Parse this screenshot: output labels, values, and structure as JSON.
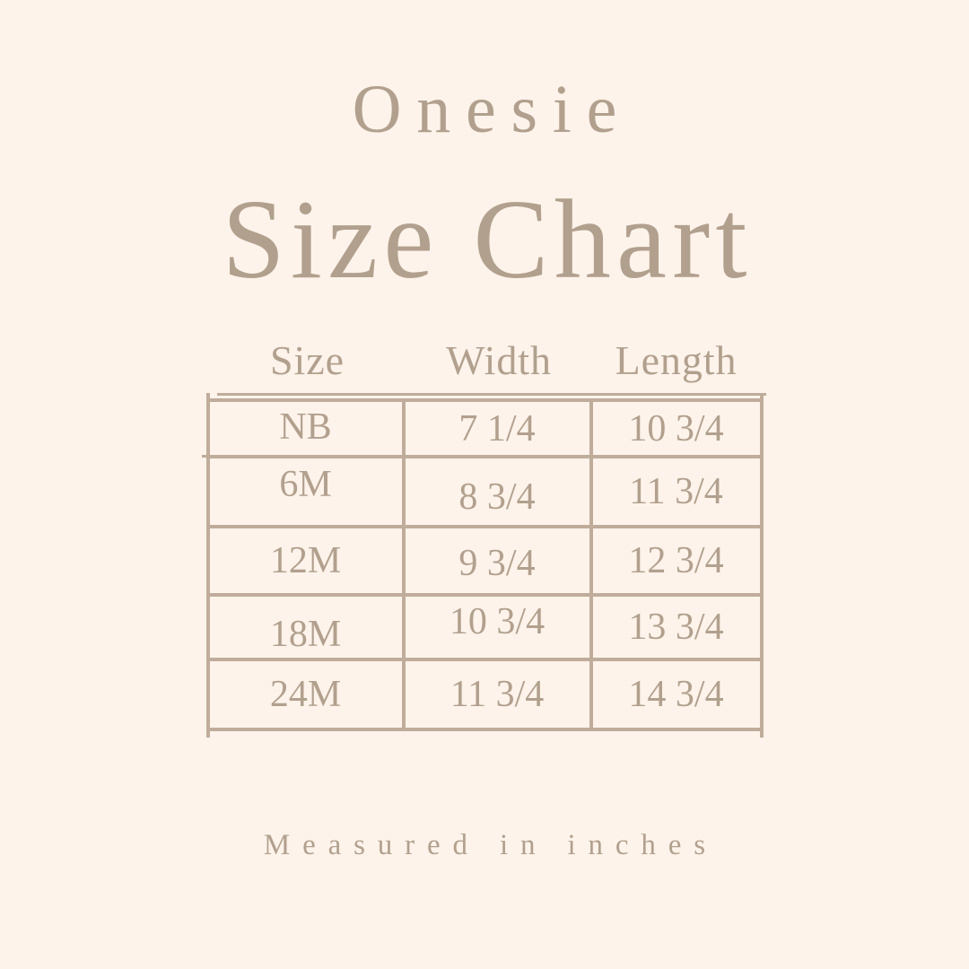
{
  "page": {
    "background_color": "#fdf3ea",
    "text_color": "#b2a08e",
    "border_color": "#bfac9b"
  },
  "titles": {
    "subtitle": "Onesie",
    "title": "Size Chart"
  },
  "table": {
    "columns": [
      "Size",
      "Width",
      "Length"
    ],
    "rows": [
      {
        "size": "NB",
        "width": "7 1/4",
        "length": "10 3/4"
      },
      {
        "size": "6M",
        "width": "8 3/4",
        "length": "11 3/4"
      },
      {
        "size": "12M",
        "width": "9 3/4",
        "length": "12 3/4"
      },
      {
        "size": "18M",
        "width": "10 3/4",
        "length": "13 3/4"
      },
      {
        "size": "24M",
        "width": "11 3/4",
        "length": "14 3/4"
      }
    ]
  },
  "footer": {
    "note": "Measured in inches"
  }
}
